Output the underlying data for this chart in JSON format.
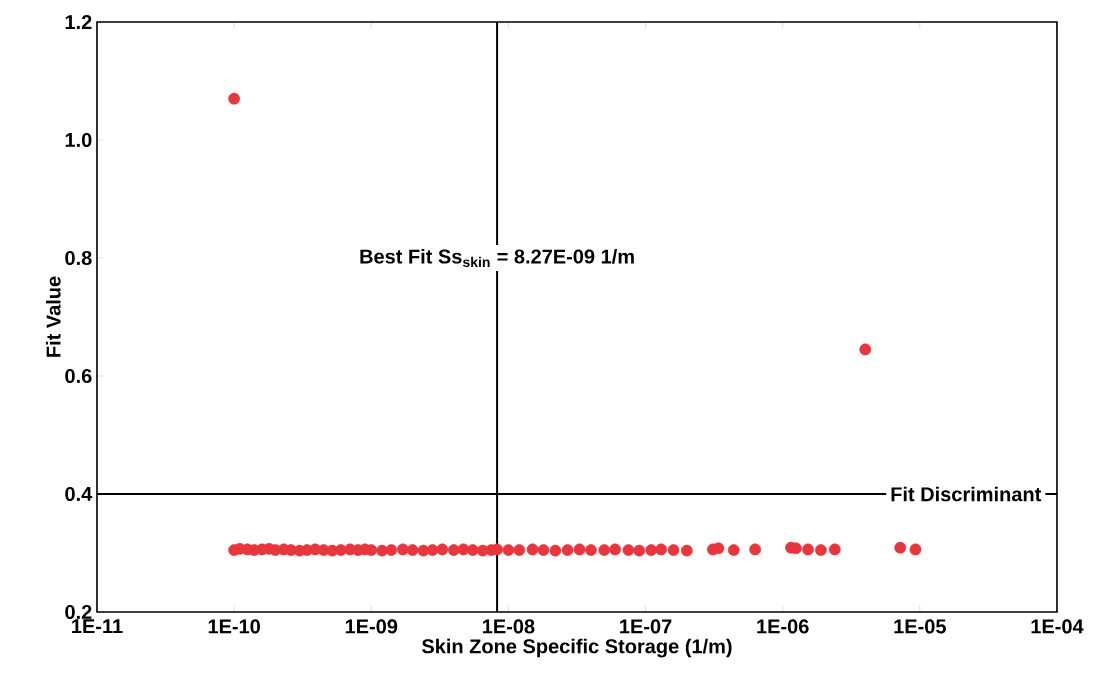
{
  "chart_data": {
    "type": "scatter",
    "xlabel": "Skin Zone Specific Storage (1/m)",
    "ylabel": "Fit Value",
    "log": "x",
    "xlim": [
      1e-11,
      0.0001
    ],
    "ylim": [
      0.2,
      1.2
    ],
    "xticks": [
      {
        "value": 1e-11,
        "label": "1E-11"
      },
      {
        "value": 1e-10,
        "label": "1E-10"
      },
      {
        "value": 1e-09,
        "label": "1E-09"
      },
      {
        "value": 1e-08,
        "label": "1E-08"
      },
      {
        "value": 1e-07,
        "label": "1E-07"
      },
      {
        "value": 1e-06,
        "label": "1E-06"
      },
      {
        "value": 1e-05,
        "label": "1E-05"
      },
      {
        "value": 0.0001,
        "label": "1E-04"
      }
    ],
    "yticks": [
      0.2,
      0.4,
      0.6,
      0.8,
      {
        "value": 1.0,
        "label": "1.0"
      },
      1.2
    ],
    "grid": false,
    "marker": "circle",
    "ref_lines": [
      {
        "axis": "x",
        "value": 8.27e-09,
        "label": "Best Fit Ss$_{skin}$ = 8.27E-09 1/m",
        "color": "#000000"
      },
      {
        "axis": "y",
        "value": 0.4,
        "label": "Fit Discriminant",
        "color": "#000000"
      }
    ],
    "series": [
      {
        "color": "#e8363f",
        "x": [
          1e-10,
          1.1e-10,
          1.25e-10,
          1.4e-10,
          1.6e-10,
          1.8e-10,
          2e-10,
          2.3e-10,
          2.6e-10,
          3e-10,
          3.4e-10,
          3.9e-10,
          4.5e-10,
          5.2e-10,
          6e-10,
          7e-10,
          8e-10,
          9e-10,
          1e-09,
          1.2e-09,
          1.4e-09,
          1.7e-09,
          2e-09,
          2.4e-09,
          2.8e-09,
          3.3e-09,
          4e-09,
          4.7e-09,
          5.5e-09,
          6.5e-09,
          7.5e-09,
          8.27e-09,
          1e-08,
          1.2e-08,
          1.5e-08,
          1.8e-08,
          2.2e-08,
          2.7e-08,
          3.3e-08,
          4e-08,
          5e-08,
          6e-08,
          7.5e-08,
          9e-08,
          1.1e-07,
          1.3e-07,
          1.6e-07,
          2e-07,
          3.1e-07,
          3.4e-07,
          4.4e-07,
          6.3e-07,
          1.15e-06,
          1.25e-06,
          1.53e-06,
          1.9e-06,
          2.4e-06,
          7.2e-06,
          9.3e-06,
          1e-10,
          4e-06
        ],
        "values": [
          0.305,
          0.307,
          0.306,
          0.305,
          0.306,
          0.307,
          0.305,
          0.306,
          0.305,
          0.304,
          0.305,
          0.306,
          0.305,
          0.304,
          0.305,
          0.306,
          0.305,
          0.306,
          0.305,
          0.304,
          0.305,
          0.306,
          0.305,
          0.304,
          0.305,
          0.306,
          0.305,
          0.306,
          0.305,
          0.304,
          0.305,
          0.306,
          0.305,
          0.305,
          0.306,
          0.305,
          0.304,
          0.305,
          0.306,
          0.305,
          0.305,
          0.306,
          0.305,
          0.304,
          0.305,
          0.306,
          0.305,
          0.304,
          0.306,
          0.308,
          0.305,
          0.306,
          0.309,
          0.308,
          0.306,
          0.305,
          0.306,
          0.309,
          0.306,
          1.07,
          0.645
        ]
      }
    ]
  }
}
